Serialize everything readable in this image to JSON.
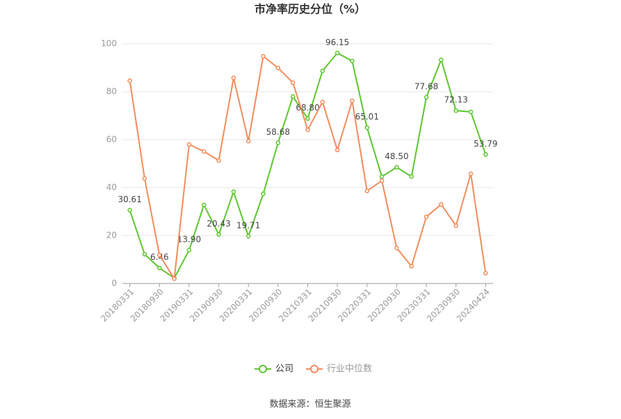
{
  "chart_data": {
    "type": "line",
    "title": "市净率历史分位（%）",
    "source": "数据来源：恒生聚源",
    "categories": [
      "20180331",
      null,
      "20180930",
      null,
      "20190331",
      null,
      "20190930",
      null,
      "20200331",
      null,
      "20200930",
      null,
      "20210331",
      null,
      "20210930",
      null,
      "20220331",
      null,
      "20220930",
      null,
      "20230331",
      null,
      "20230930",
      null,
      "20240424"
    ],
    "series": [
      {
        "name": "公司",
        "color": "#5cc62e",
        "values": [
          30.61,
          12.2,
          6.46,
          2.3,
          13.9,
          32.8,
          20.43,
          38.3,
          19.71,
          37.4,
          58.68,
          78.0,
          68.8,
          88.7,
          96.15,
          92.8,
          65.01,
          44.6,
          48.5,
          44.6,
          77.68,
          93.3,
          72.13,
          71.6,
          53.79
        ],
        "value_labels": [
          "30.61",
          null,
          "6.46",
          null,
          "13.90",
          null,
          "20.43",
          null,
          "19.71",
          null,
          "58.68",
          null,
          "68.80",
          null,
          "96.15",
          null,
          "65.01",
          null,
          "48.50",
          null,
          "77.68",
          null,
          "72.13",
          null,
          "53.79"
        ]
      },
      {
        "name": "行业中位数",
        "color": "#f28c5b",
        "values": [
          84.6,
          43.8,
          11.9,
          2.0,
          58.0,
          55.1,
          51.3,
          85.8,
          59.4,
          94.8,
          89.9,
          83.8,
          64.1,
          75.7,
          55.7,
          76.2,
          38.6,
          42.9,
          14.8,
          7.2,
          27.8,
          33.0,
          24.1,
          45.8,
          4.3
        ]
      }
    ],
    "ylim": [
      0,
      100
    ],
    "yticks": [
      0,
      20,
      40,
      60,
      80,
      100
    ],
    "grid": true
  }
}
